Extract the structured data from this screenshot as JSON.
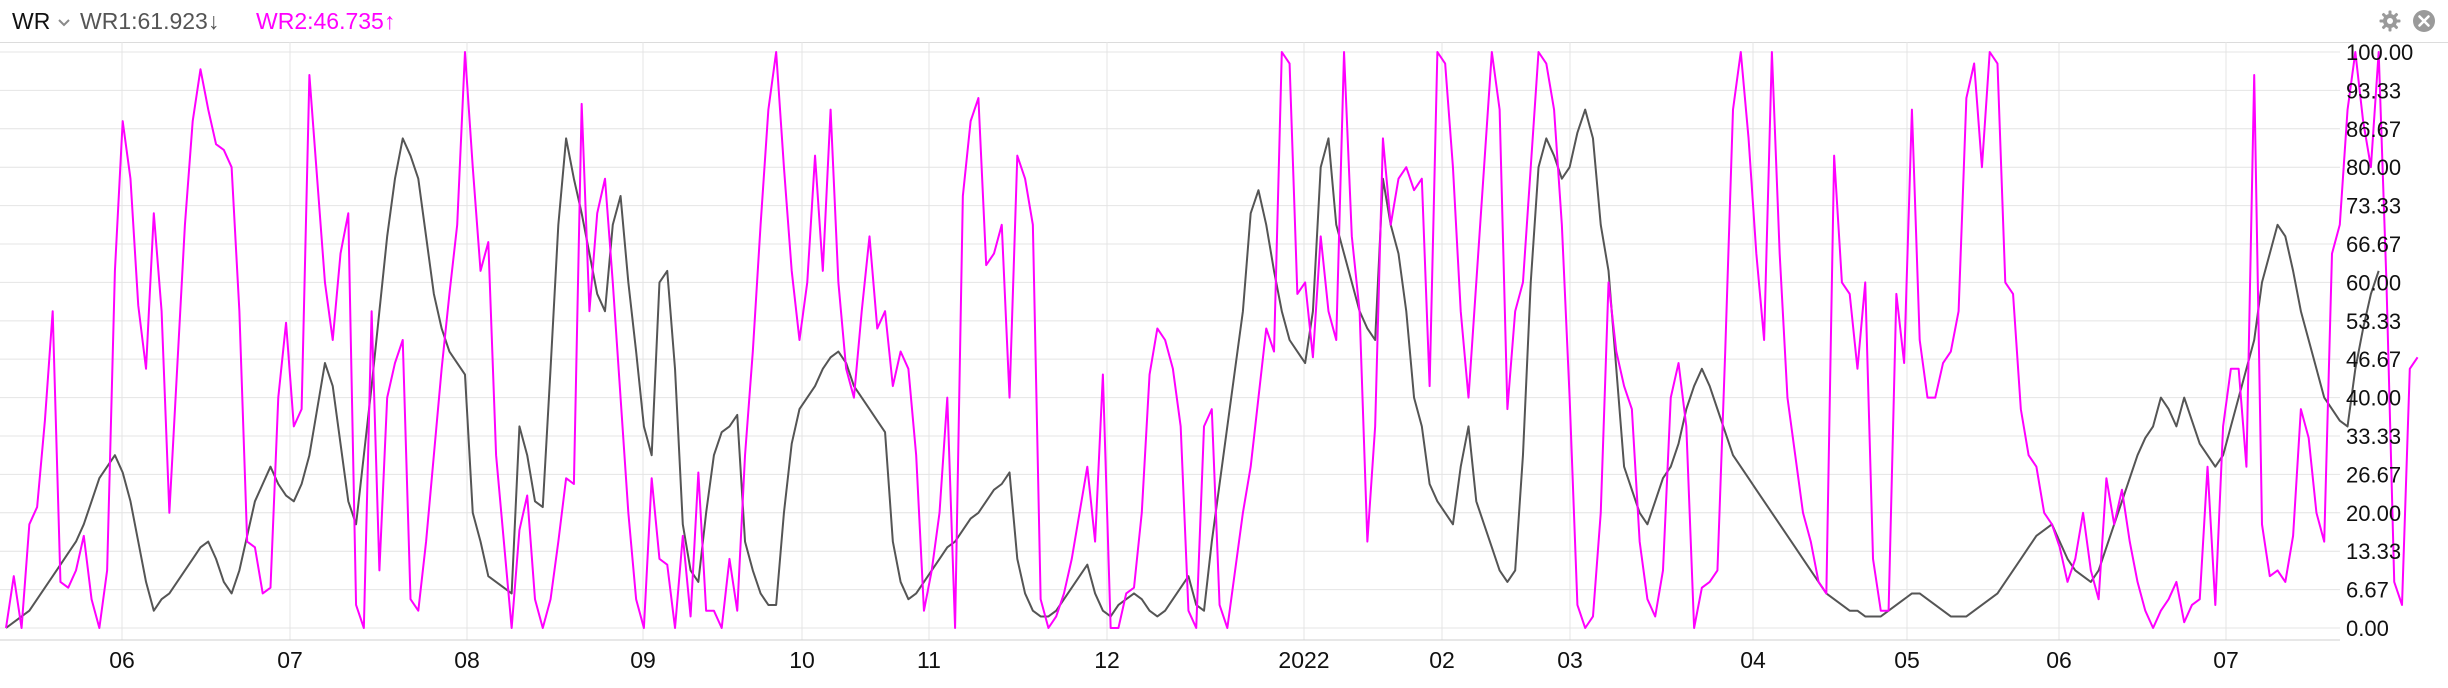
{
  "indicator": {
    "name": "WR",
    "dropdown_icon": "chevron-down-icon",
    "wr1_label": "WR1:61.923↓",
    "wr2_label": "WR2:46.735↑",
    "wr1_color": "#555555",
    "wr2_color": "#ff00ff",
    "settings_icon": "gear-icon",
    "close_icon": "close-icon"
  },
  "chart_data": {
    "type": "line",
    "title": "",
    "xlabel": "",
    "ylabel": "",
    "ylim": [
      0,
      100
    ],
    "y_axis_position": "right",
    "grid": true,
    "yticks": [
      "100.00",
      "93.33",
      "86.67",
      "80.00",
      "73.33",
      "66.67",
      "60.00",
      "53.33",
      "46.67",
      "40.00",
      "33.33",
      "26.67",
      "20.00",
      "13.33",
      "6.67",
      "0.00"
    ],
    "xtick_labels": [
      "06",
      "07",
      "08",
      "09",
      "10",
      "11",
      "12",
      "2022",
      "02",
      "03",
      "04",
      "05",
      "06",
      "07"
    ],
    "x_count": 300,
    "series": [
      {
        "name": "WR1",
        "color": "#555555",
        "values": [
          0,
          1,
          2,
          3,
          5,
          7,
          9,
          11,
          13,
          15,
          18,
          22,
          26,
          28,
          30,
          27,
          22,
          15,
          8,
          3,
          5,
          6,
          8,
          10,
          12,
          14,
          15,
          12,
          8,
          6,
          10,
          16,
          22,
          25,
          28,
          25,
          23,
          22,
          25,
          30,
          38,
          46,
          42,
          32,
          22,
          18,
          30,
          42,
          55,
          68,
          78,
          85,
          82,
          78,
          68,
          58,
          52,
          48,
          46,
          44,
          20,
          15,
          9,
          8,
          7,
          6,
          35,
          30,
          22,
          21,
          45,
          70,
          85,
          78,
          72,
          65,
          58,
          55,
          70,
          75,
          60,
          48,
          35,
          30,
          60,
          62,
          45,
          18,
          10,
          8,
          20,
          30,
          34,
          35,
          37,
          15,
          10,
          6,
          4,
          4,
          20,
          32,
          38,
          40,
          42,
          45,
          47,
          48,
          46,
          42,
          40,
          38,
          36,
          34,
          15,
          8,
          5,
          6,
          8,
          10,
          12,
          14,
          15,
          17,
          19,
          20,
          22,
          24,
          25,
          27,
          12,
          6,
          3,
          2,
          2,
          3,
          5,
          7,
          9,
          11,
          6,
          3,
          2,
          4,
          5,
          6,
          5,
          3,
          2,
          3,
          5,
          7,
          9,
          4,
          3,
          15,
          25,
          35,
          45,
          55,
          72,
          76,
          70,
          62,
          55,
          50,
          48,
          46,
          55,
          80,
          85,
          70,
          65,
          60,
          55,
          52,
          50,
          78,
          70,
          65,
          55,
          40,
          35,
          25,
          22,
          20,
          18,
          28,
          35,
          22,
          18,
          14,
          10,
          8,
          10,
          30,
          60,
          80,
          85,
          82,
          78,
          80,
          86,
          90,
          85,
          70,
          62,
          45,
          28,
          24,
          20,
          18,
          22,
          26,
          28,
          32,
          38,
          42,
          45,
          42,
          38,
          34,
          30,
          28,
          26,
          24,
          22,
          20,
          18,
          16,
          14,
          12,
          10,
          8,
          6,
          5,
          4,
          3,
          3,
          2,
          2,
          2,
          3,
          4,
          5,
          6,
          6,
          5,
          4,
          3,
          2,
          2,
          2,
          3,
          4,
          5,
          6,
          8,
          10,
          12,
          14,
          16,
          17,
          18,
          15,
          12,
          10,
          9,
          8,
          10,
          14,
          18,
          22,
          26,
          30,
          33,
          35,
          40,
          38,
          35,
          40,
          36,
          32,
          30,
          28,
          30,
          35,
          40,
          45,
          50,
          60,
          65,
          70,
          68,
          62,
          55,
          50,
          45,
          40,
          38,
          36,
          35,
          45,
          52,
          58,
          62
        ],
        "note": ""
      },
      {
        "name": "WR2",
        "color": "#ff00ff",
        "values": [
          0,
          9,
          0,
          18,
          21,
          36,
          55,
          8,
          7,
          10,
          16,
          5,
          0,
          10,
          62,
          88,
          78,
          56,
          45,
          72,
          55,
          20,
          45,
          70,
          88,
          97,
          90,
          84,
          83,
          80,
          55,
          15,
          14,
          6,
          7,
          40,
          53,
          35,
          38,
          96,
          78,
          60,
          50,
          65,
          72,
          4,
          0,
          55,
          10,
          40,
          46,
          50,
          5,
          3,
          15,
          30,
          45,
          58,
          70,
          100,
          80,
          62,
          67,
          30,
          15,
          0,
          17,
          23,
          5,
          0,
          5,
          15,
          26,
          25,
          91,
          55,
          72,
          78,
          60,
          40,
          20,
          5,
          0,
          26,
          12,
          11,
          0,
          16,
          2,
          27,
          3,
          3,
          0,
          12,
          3,
          30,
          48,
          70,
          90,
          100,
          80,
          62,
          50,
          60,
          82,
          62,
          90,
          60,
          45,
          40,
          55,
          68,
          52,
          55,
          42,
          48,
          45,
          30,
          3,
          10,
          20,
          40,
          0,
          75,
          88,
          92,
          63,
          65,
          70,
          40,
          82,
          78,
          70,
          5,
          0,
          2,
          6,
          12,
          20,
          28,
          15,
          44,
          0,
          0,
          6,
          7,
          20,
          44,
          52,
          50,
          45,
          35,
          3,
          0,
          35,
          38,
          4,
          0,
          10,
          20,
          28,
          40,
          52,
          48,
          100,
          98,
          58,
          60,
          47,
          68,
          55,
          50,
          100,
          68,
          55,
          15,
          35,
          85,
          70,
          78,
          80,
          76,
          78,
          42,
          100,
          98,
          80,
          55,
          40,
          60,
          80,
          100,
          90,
          38,
          55,
          60,
          80,
          100,
          98,
          90,
          70,
          40,
          4,
          0,
          2,
          20,
          60,
          48,
          42,
          38,
          15,
          5,
          2,
          10,
          40,
          46,
          35,
          0,
          7,
          8,
          10,
          48,
          90,
          100,
          85,
          65,
          50,
          100,
          65,
          40,
          30,
          20,
          15,
          8,
          6,
          82,
          60,
          58,
          45,
          60,
          12,
          3,
          3,
          58,
          46,
          90,
          50,
          40,
          40,
          46,
          48,
          55,
          92,
          98,
          80,
          100,
          98,
          60,
          58,
          38,
          30,
          28,
          20,
          18,
          14,
          8,
          12,
          20,
          10,
          5,
          26,
          18,
          24,
          15,
          8,
          3,
          0,
          3,
          5,
          8,
          1,
          4,
          5,
          28,
          4,
          35,
          45,
          45,
          28,
          96,
          18,
          9,
          10,
          8,
          16,
          38,
          33,
          20,
          15,
          65,
          70,
          90,
          100,
          88,
          80,
          100,
          60,
          8,
          4,
          45,
          47
        ],
        "note": ""
      }
    ]
  }
}
